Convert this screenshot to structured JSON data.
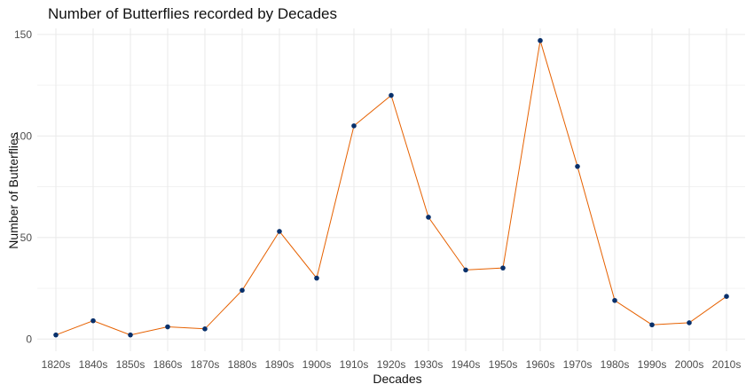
{
  "chart_data": {
    "type": "line",
    "title": "Number of Butterflies recorded by Decades",
    "xlabel": "Decades",
    "ylabel": "Number of Butterflies",
    "categories": [
      "1820s",
      "1840s",
      "1850s",
      "1860s",
      "1870s",
      "1880s",
      "1890s",
      "1900s",
      "1910s",
      "1920s",
      "1930s",
      "1940s",
      "1950s",
      "1960s",
      "1970s",
      "1980s",
      "1990s",
      "2000s",
      "2010s"
    ],
    "series": [
      {
        "values": [
          2,
          9,
          2,
          6,
          5,
          24,
          53,
          30,
          105,
          120,
          60,
          34,
          35,
          147,
          85,
          19,
          7,
          8,
          21
        ]
      }
    ],
    "ylim": [
      -6,
      153
    ],
    "yticks": [
      0,
      50,
      100,
      150
    ],
    "grid": true,
    "legend": "none",
    "colors": {
      "line": "#e66101",
      "point": "#08306b",
      "grid": "#ebebeb"
    }
  }
}
